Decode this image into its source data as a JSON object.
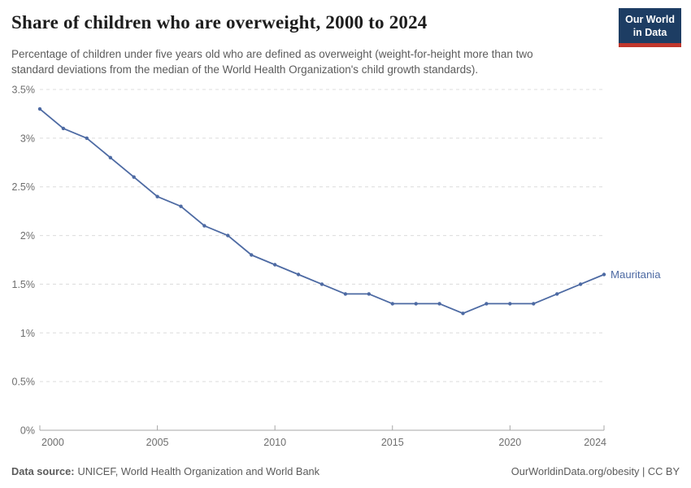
{
  "header": {
    "title": "Share of children who are overweight, 2000 to 2024",
    "subtitle": "Percentage of children under five years old who are defined as overweight (weight-for-height more than two standard deviations from the median of the World Health Organization's child growth standards).",
    "logo": {
      "line1": "Our World",
      "line2": "in Data"
    }
  },
  "chart_data": {
    "type": "line",
    "title": "Share of children who are overweight, 2000 to 2024",
    "x": [
      2000,
      2001,
      2002,
      2003,
      2004,
      2005,
      2006,
      2007,
      2008,
      2009,
      2010,
      2011,
      2012,
      2013,
      2014,
      2015,
      2016,
      2017,
      2018,
      2019,
      2020,
      2021,
      2022,
      2023,
      2024
    ],
    "series": [
      {
        "name": "Mauritania",
        "color": "#4d6aa3",
        "values": [
          3.3,
          3.1,
          3.0,
          2.8,
          2.6,
          2.4,
          2.3,
          2.1,
          2.0,
          1.8,
          1.7,
          1.6,
          1.5,
          1.4,
          1.4,
          1.3,
          1.3,
          1.3,
          1.2,
          1.3,
          1.3,
          1.3,
          1.4,
          1.5,
          1.6
        ]
      }
    ],
    "xlim": [
      2000,
      2024
    ],
    "ylim": [
      0,
      3.5
    ],
    "x_ticks": [
      2000,
      2005,
      2010,
      2015,
      2020,
      2024
    ],
    "y_ticks": [
      0,
      0.5,
      1,
      1.5,
      2,
      2.5,
      3,
      3.5
    ],
    "y_tick_suffix": "%",
    "grid": true,
    "legend": "end-of-line-label"
  },
  "footer": {
    "source_label": "Data source:",
    "source_text": "UNICEF, World Health Organization and World Bank",
    "attribution": "OurWorldinData.org/obesity | CC BY"
  },
  "colors": {
    "line": "#4d6aa3",
    "grid": "#dcdcdc",
    "axis": "#a7a7a7",
    "tick_label": "#6e6e6e",
    "title_text": "#1d1d1d",
    "subtitle_text": "#5b5b5b",
    "logo_bg": "#1d3d63",
    "logo_red": "#c0362c"
  }
}
